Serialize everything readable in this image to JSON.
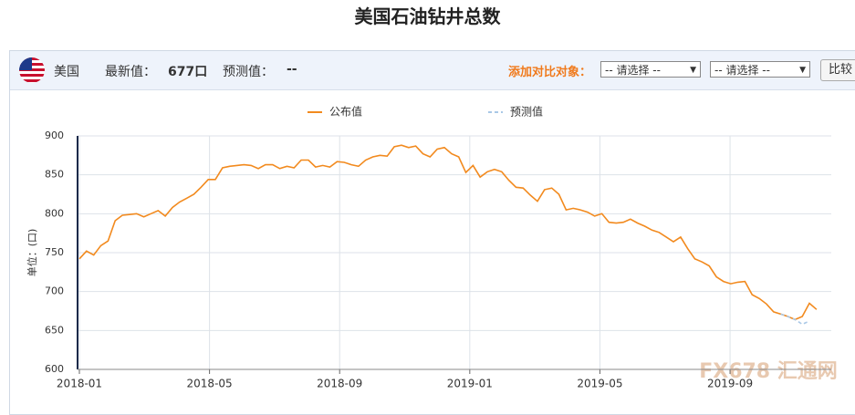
{
  "panel": {
    "country": "美国",
    "latest_label": "最新值：",
    "latest_value": "677口",
    "forecast_label": "预测值：",
    "forecast_value": "--",
    "compare_label": "添加对比对象：",
    "select1": "-- 请选择 --",
    "select2": "-- 请选择 --",
    "button": "比较"
  },
  "watermark": "FX678 汇通网",
  "chart_data": {
    "type": "line",
    "title": "美国石油钻井总数",
    "y_label": "单位：(口)",
    "xlim": [
      0,
      23
    ],
    "ylim": [
      600,
      900
    ],
    "xticks": [
      {
        "value": 0,
        "label": "2018-01"
      },
      {
        "value": 4,
        "label": "2018-05"
      },
      {
        "value": 8,
        "label": "2018-09"
      },
      {
        "value": 12,
        "label": "2019-01"
      },
      {
        "value": 16,
        "label": "2019-05"
      },
      {
        "value": 20,
        "label": "2019-09"
      }
    ],
    "yticks": [
      600,
      650,
      700,
      750,
      800,
      850,
      900
    ],
    "grid": true,
    "series": [
      {
        "name": "公布值",
        "color": "#f28a1e",
        "dashed": false,
        "x": [
          0,
          0.22,
          0.44,
          0.66,
          0.88,
          1.1,
          1.32,
          1.54,
          1.76,
          1.98,
          2.2,
          2.42,
          2.64,
          2.86,
          3.08,
          3.3,
          3.52,
          3.74,
          3.96,
          4.18,
          4.4,
          4.62,
          4.84,
          5.06,
          5.28,
          5.5,
          5.72,
          5.94,
          6.16,
          6.38,
          6.6,
          6.82,
          7.04,
          7.26,
          7.48,
          7.7,
          7.92,
          8.14,
          8.36,
          8.58,
          8.8,
          9.02,
          9.24,
          9.46,
          9.68,
          9.9,
          10.12,
          10.34,
          10.56,
          10.78,
          11,
          11.22,
          11.44,
          11.66,
          11.88,
          12.1,
          12.32,
          12.54,
          12.76,
          12.98,
          13.2,
          13.42,
          13.64,
          13.86,
          14.08,
          14.3,
          14.52,
          14.74,
          14.96,
          15.18,
          15.4,
          15.62,
          15.84,
          16.06,
          16.28,
          16.5,
          16.72,
          16.94,
          17.16,
          17.38,
          17.6,
          17.82,
          18.04,
          18.26,
          18.48,
          18.7,
          18.92,
          19.14,
          19.36,
          19.58,
          19.8,
          20.02,
          20.24,
          20.46,
          20.68,
          20.9,
          21.12,
          21.34,
          21.56,
          21.78,
          22,
          22.22,
          22.44,
          22.66
        ],
        "values": [
          742,
          752,
          747,
          759,
          765,
          791,
          798,
          799,
          800,
          796,
          800,
          804,
          797,
          808,
          815,
          820,
          825,
          834,
          844,
          844,
          859,
          861,
          862,
          863,
          862,
          858,
          863,
          863,
          858,
          861,
          859,
          869,
          869,
          860,
          862,
          860,
          867,
          866,
          863,
          861,
          869,
          873,
          875,
          874,
          886,
          888,
          885,
          887,
          877,
          873,
          883,
          885,
          877,
          873,
          853,
          862,
          847,
          854,
          857,
          854,
          843,
          834,
          833,
          824,
          816,
          831,
          833,
          825,
          805,
          807,
          805,
          802,
          797,
          800,
          789,
          788,
          789,
          793,
          788,
          784,
          779,
          776,
          770,
          764,
          770,
          755,
          742,
          738,
          733,
          719,
          713,
          710,
          712,
          713,
          696,
          691,
          684,
          674,
          671,
          668,
          664,
          668,
          685,
          677
        ]
      },
      {
        "name": "预测值",
        "color": "#a9c8e6",
        "dashed": true,
        "x": [
          21.56,
          21.78,
          22,
          22.22,
          22.44
        ],
        "values": [
          671,
          668,
          664,
          658,
          662
        ]
      }
    ]
  }
}
